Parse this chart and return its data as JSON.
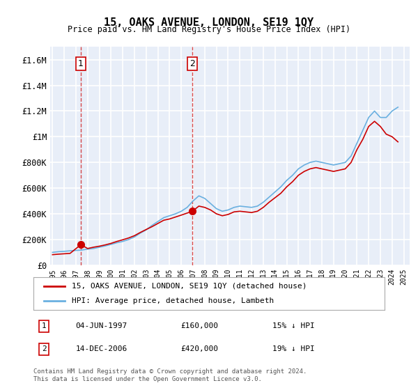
{
  "title": "15, OAKS AVENUE, LONDON, SE19 1QY",
  "subtitle": "Price paid vs. HM Land Registry's House Price Index (HPI)",
  "xlabel": "",
  "ylabel": "",
  "ylim": [
    0,
    1700000
  ],
  "yticks": [
    0,
    200000,
    400000,
    600000,
    800000,
    1000000,
    1200000,
    1400000,
    1600000
  ],
  "ytick_labels": [
    "£0",
    "£200K",
    "£400K",
    "£600K",
    "£800K",
    "£1M",
    "£1.2M",
    "£1.4M",
    "£1.6M"
  ],
  "background_color": "#f0f4fa",
  "plot_bg_color": "#e8eef8",
  "grid_color": "#ffffff",
  "hpi_color": "#6ab0e0",
  "price_color": "#cc0000",
  "sale1_year": 1997.42,
  "sale1_price": 160000,
  "sale2_year": 2006.95,
  "sale2_price": 420000,
  "legend_label_price": "15, OAKS AVENUE, LONDON, SE19 1QY (detached house)",
  "legend_label_hpi": "HPI: Average price, detached house, Lambeth",
  "note1_label": "1",
  "note1_date": "04-JUN-1997",
  "note1_price": "£160,000",
  "note1_hpi": "15% ↓ HPI",
  "note2_label": "2",
  "note2_date": "14-DEC-2006",
  "note2_price": "£420,000",
  "note2_hpi": "19% ↓ HPI",
  "footer": "Contains HM Land Registry data © Crown copyright and database right 2024.\nThis data is licensed under the Open Government Licence v3.0.",
  "hpi_data_x": [
    1995,
    1995.5,
    1996,
    1996.5,
    1997,
    1997.5,
    1998,
    1998.5,
    1999,
    1999.5,
    2000,
    2000.5,
    2001,
    2001.5,
    2002,
    2002.5,
    2003,
    2003.5,
    2004,
    2004.5,
    2005,
    2005.5,
    2006,
    2006.5,
    2007,
    2007.5,
    2008,
    2008.5,
    2009,
    2009.5,
    2010,
    2010.5,
    2011,
    2011.5,
    2012,
    2012.5,
    2013,
    2013.5,
    2014,
    2014.5,
    2015,
    2015.5,
    2016,
    2016.5,
    2017,
    2017.5,
    2018,
    2018.5,
    2019,
    2019.5,
    2020,
    2020.5,
    2021,
    2021.5,
    2022,
    2022.5,
    2023,
    2023.5,
    2024,
    2024.5
  ],
  "hpi_data_y": [
    100000,
    105000,
    108000,
    112000,
    115000,
    118000,
    125000,
    130000,
    140000,
    150000,
    162000,
    175000,
    185000,
    200000,
    220000,
    250000,
    275000,
    310000,
    340000,
    370000,
    385000,
    400000,
    420000,
    450000,
    500000,
    540000,
    520000,
    480000,
    440000,
    420000,
    430000,
    450000,
    460000,
    455000,
    450000,
    460000,
    490000,
    530000,
    570000,
    610000,
    660000,
    700000,
    750000,
    780000,
    800000,
    810000,
    800000,
    790000,
    780000,
    790000,
    800000,
    850000,
    950000,
    1050000,
    1150000,
    1200000,
    1150000,
    1150000,
    1200000,
    1230000
  ],
  "price_data_x": [
    1995,
    1995.5,
    1996,
    1996.5,
    1997.42,
    1998,
    1998.5,
    1999,
    1999.5,
    2000,
    2000.5,
    2001,
    2001.5,
    2002,
    2002.5,
    2003,
    2003.5,
    2004,
    2004.5,
    2005,
    2005.5,
    2006,
    2006.95,
    2007.5,
    2008,
    2008.5,
    2009,
    2009.5,
    2010,
    2010.5,
    2011,
    2011.5,
    2012,
    2012.5,
    2013,
    2013.5,
    2014,
    2014.5,
    2015,
    2015.5,
    2016,
    2016.5,
    2017,
    2017.5,
    2018,
    2018.5,
    2019,
    2019.5,
    2020,
    2020.5,
    2021,
    2021.5,
    2022,
    2022.5,
    2023,
    2023.5,
    2024,
    2024.5
  ],
  "price_data_y": [
    82000,
    86000,
    89000,
    92000,
    160000,
    130000,
    140000,
    148000,
    158000,
    170000,
    185000,
    198000,
    212000,
    230000,
    255000,
    278000,
    300000,
    325000,
    350000,
    360000,
    375000,
    390000,
    420000,
    460000,
    450000,
    430000,
    400000,
    385000,
    395000,
    415000,
    420000,
    415000,
    410000,
    420000,
    450000,
    490000,
    525000,
    560000,
    610000,
    650000,
    700000,
    730000,
    750000,
    760000,
    750000,
    740000,
    730000,
    740000,
    750000,
    800000,
    900000,
    980000,
    1080000,
    1120000,
    1080000,
    1020000,
    1000000,
    960000
  ]
}
